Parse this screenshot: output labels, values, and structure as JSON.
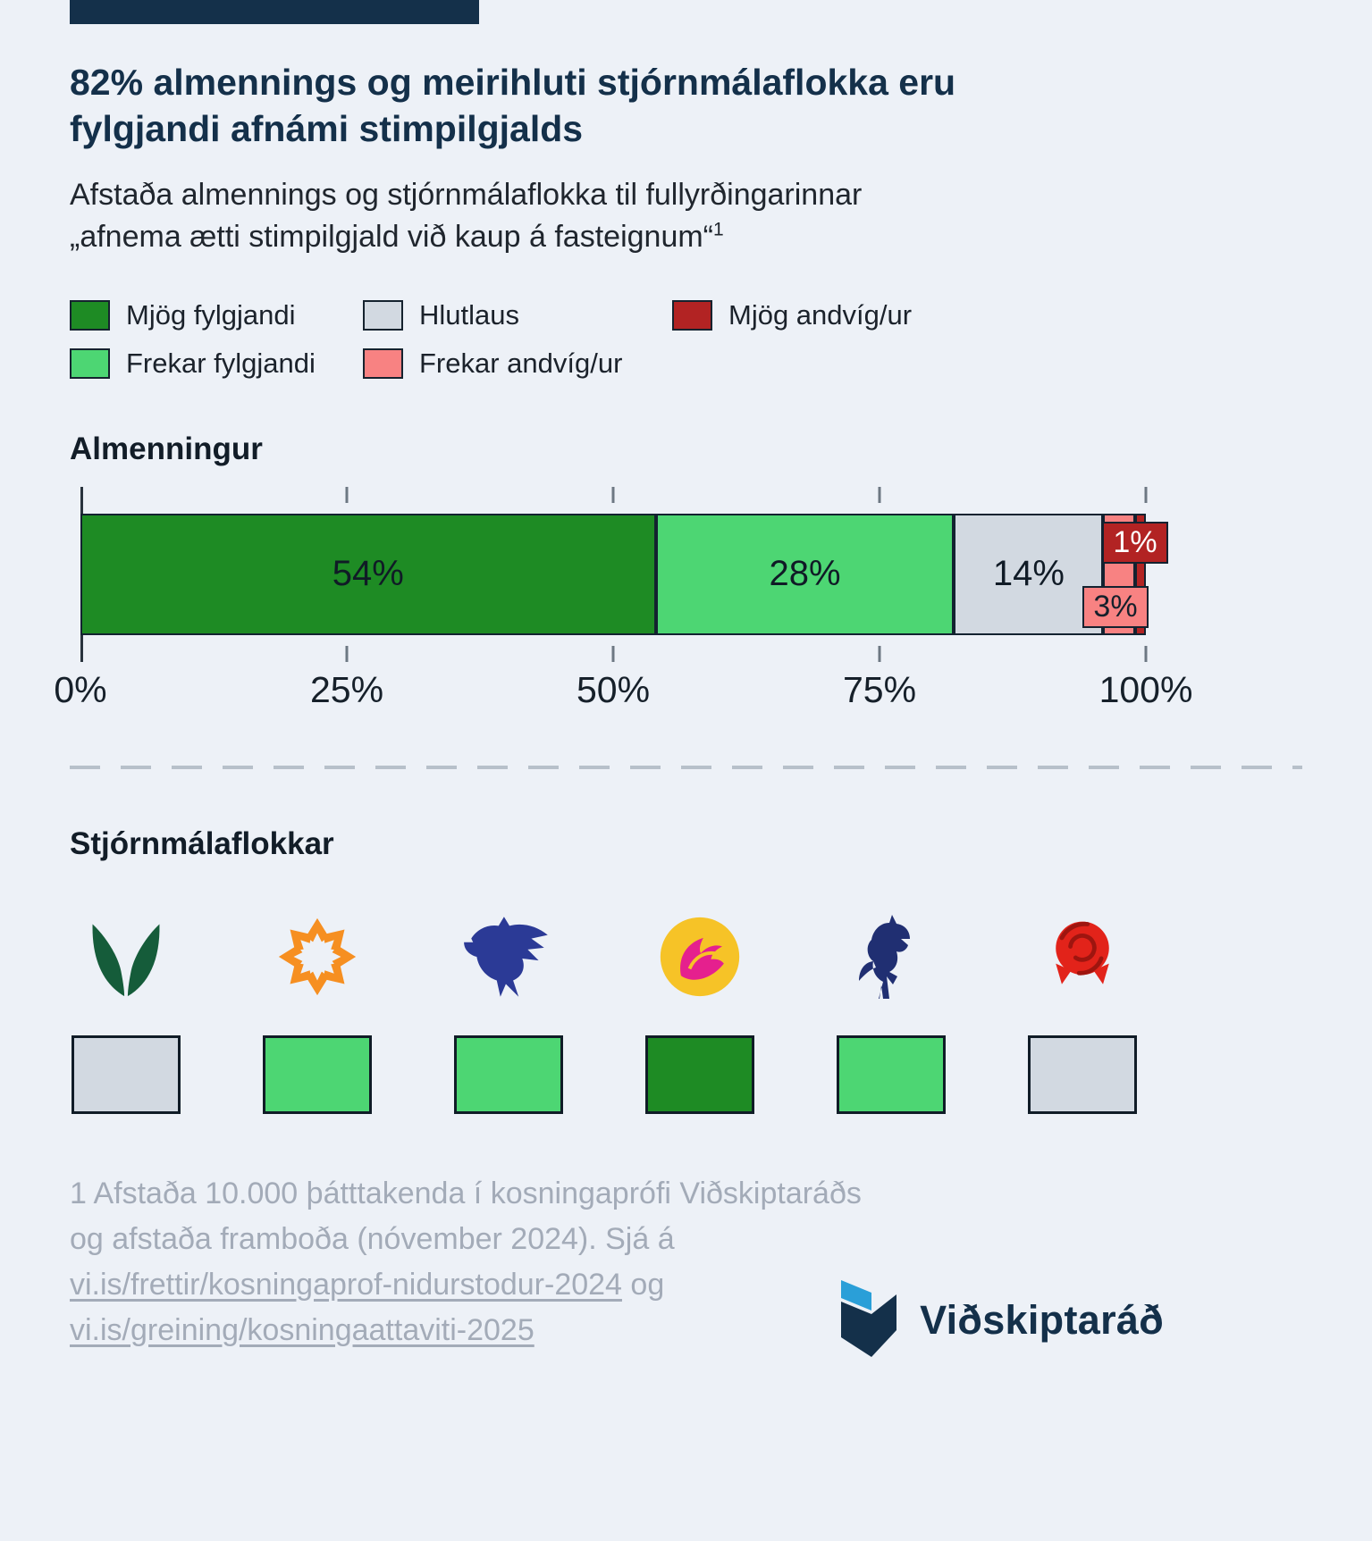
{
  "page": {
    "background": "#edf1f7",
    "accent_color": "#14304a"
  },
  "header": {
    "title_lines": [
      "82% almennings og meirihluti stjórnmálaflokka eru",
      "fylgjandi afnámi stimpilgjalds"
    ],
    "subtitle_lines": [
      "Afstaða almennings og stjórnmálaflokka til fullyrðingarinnar",
      "„afnema ætti stimpilgjald við kaup á fasteignum“"
    ],
    "footnote_marker": "1"
  },
  "legend": {
    "items": [
      {
        "label": "Mjög fylgjandi",
        "color": "#1e8b24"
      },
      {
        "label": "Hlutlaus",
        "color": "#d2d9e1"
      },
      {
        "label": "Mjög andvíg/ur",
        "color": "#b22323"
      },
      {
        "label": "Frekar fylgjandi",
        "color": "#4dd673"
      },
      {
        "label": "Frekar andvíg/ur",
        "color": "#f88282"
      }
    ]
  },
  "chart_data": {
    "type": "bar",
    "stacked": true,
    "orientation": "horizontal",
    "title": "Almenningur",
    "categories": [
      "Mjög fylgjandi",
      "Frekar fylgjandi",
      "Hlutlaus",
      "Frekar andvíg/ur",
      "Mjög andvíg/ur"
    ],
    "values": [
      54,
      28,
      14,
      3,
      1
    ],
    "xlim": [
      0,
      100
    ],
    "x_ticks": [
      {
        "label": "0%",
        "pos": 0
      },
      {
        "label": "25%",
        "pos": 25
      },
      {
        "label": "50%",
        "pos": 50
      },
      {
        "label": "75%",
        "pos": 75
      },
      {
        "label": "100%",
        "pos": 100
      }
    ],
    "segments": [
      {
        "category": "Mjög fylgjandi",
        "value": 54,
        "label": "54%",
        "color": "#1e8b24",
        "label_inside": true
      },
      {
        "category": "Frekar fylgjandi",
        "value": 28,
        "label": "28%",
        "color": "#4dd673",
        "label_inside": true
      },
      {
        "category": "Hlutlaus",
        "value": 14,
        "label": "14%",
        "color": "#d2d9e1",
        "label_inside": true
      },
      {
        "category": "Frekar andvíg/ur",
        "value": 3,
        "label": "3%",
        "color": "#f88282",
        "label_inside": false
      },
      {
        "category": "Mjög andvíg/ur",
        "value": 1,
        "label": "1%",
        "color": "#b22323",
        "label_inside": false
      }
    ],
    "callouts": [
      {
        "label": "1%",
        "position": "top",
        "color": "#b22323",
        "text_color": "#ffffff"
      },
      {
        "label": "3%",
        "position": "bottom",
        "color": "#f88282",
        "text_color": "#15202b"
      }
    ]
  },
  "parties": {
    "section_title": "Stjórnmálaflokkar",
    "items": [
      {
        "icon": "framsokn-logo",
        "stance": "Hlutlaus",
        "color": "#d2d9e1"
      },
      {
        "icon": "vidreisn-logo",
        "stance": "Frekar fylgjandi",
        "color": "#4dd673"
      },
      {
        "icon": "sjalfstaedisflokkur-logo",
        "stance": "Frekar fylgjandi",
        "color": "#4dd673"
      },
      {
        "icon": "flokkur-folksins-logo",
        "stance": "Mjög fylgjandi",
        "color": "#1e8b24"
      },
      {
        "icon": "midflokkur-logo",
        "stance": "Frekar fylgjandi",
        "color": "#4dd673"
      },
      {
        "icon": "samfylking-logo",
        "stance": "Hlutlaus",
        "color": "#d2d9e1"
      }
    ]
  },
  "footnote": {
    "line1": "1 Afstaða 10.000 þátttakenda í kosningaprófi Viðskiptaráðs",
    "line2": "og afstaða framboða (nóvember 2024). Sjá á",
    "link1": "vi.is/frettir/kosningaprof-nidurstodur-2024",
    "link1_suffix": " og",
    "link2": "vi.is/greining/kosningaattaviti-2025"
  },
  "brand": {
    "name": "Viðskiptaráð"
  }
}
